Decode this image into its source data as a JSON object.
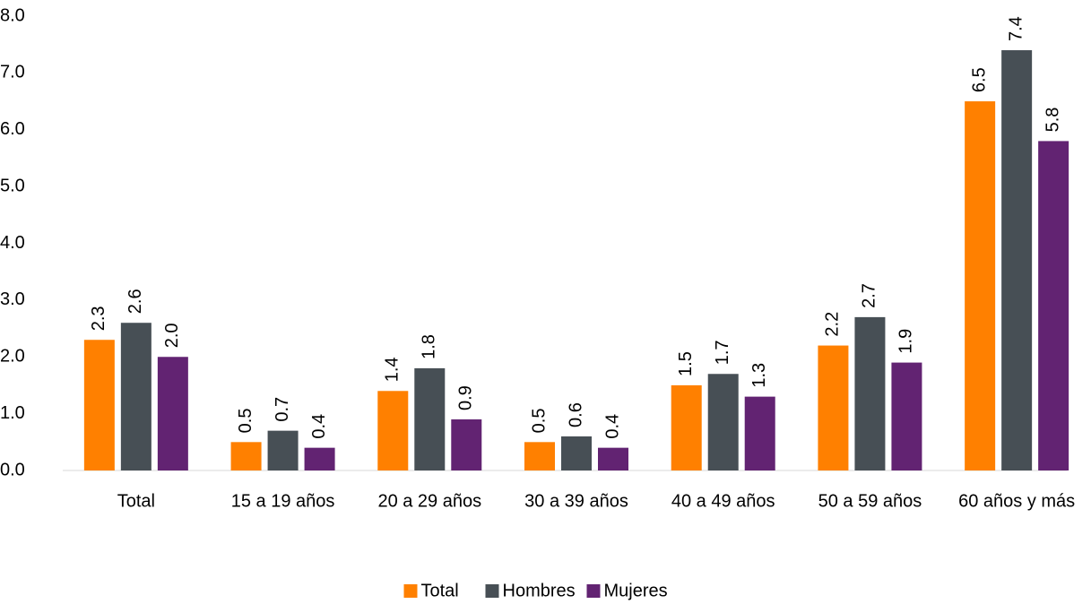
{
  "chart_data": {
    "type": "bar",
    "categories": [
      "Total",
      "15 a 19 años",
      "20 a 29 años",
      "30 a 39 años",
      "40 a 49 años",
      "50 a 59 años",
      "60 años y más"
    ],
    "series": [
      {
        "name": "Total",
        "color": "#ff8000",
        "values": [
          2.3,
          0.5,
          1.4,
          0.5,
          1.5,
          2.2,
          6.5
        ],
        "value_labels": [
          "2.3",
          "0.5",
          "1.4",
          "0.5",
          "1.5",
          "2.2",
          "6.5"
        ]
      },
      {
        "name": "Hombres",
        "color": "#474f55",
        "values": [
          2.6,
          0.7,
          1.8,
          0.6,
          1.7,
          2.7,
          7.4
        ],
        "value_labels": [
          "2.6",
          "0.7",
          "1.8",
          "0.6",
          "1.7",
          "2.7",
          "7.4"
        ]
      },
      {
        "name": "Mujeres",
        "color": "#622372",
        "values": [
          2.0,
          0.4,
          0.9,
          0.4,
          1.3,
          1.9,
          5.8
        ],
        "value_labels": [
          "2.0",
          "0.4",
          "0.9",
          "0.4",
          "1.3",
          "1.9",
          "5.8"
        ]
      }
    ],
    "ylim": [
      0,
      8
    ],
    "yticks": [
      {
        "value": 0,
        "label": "0.0"
      },
      {
        "value": 1,
        "label": "1.0"
      },
      {
        "value": 2,
        "label": "2.0"
      },
      {
        "value": 3,
        "label": "3.0"
      },
      {
        "value": 4,
        "label": "4.0"
      },
      {
        "value": 5,
        "label": "5.0"
      },
      {
        "value": 6,
        "label": "6.0"
      },
      {
        "value": 7,
        "label": "7.0"
      },
      {
        "value": 8,
        "label": "8.0"
      }
    ],
    "grid": false,
    "legend": "bottom"
  }
}
